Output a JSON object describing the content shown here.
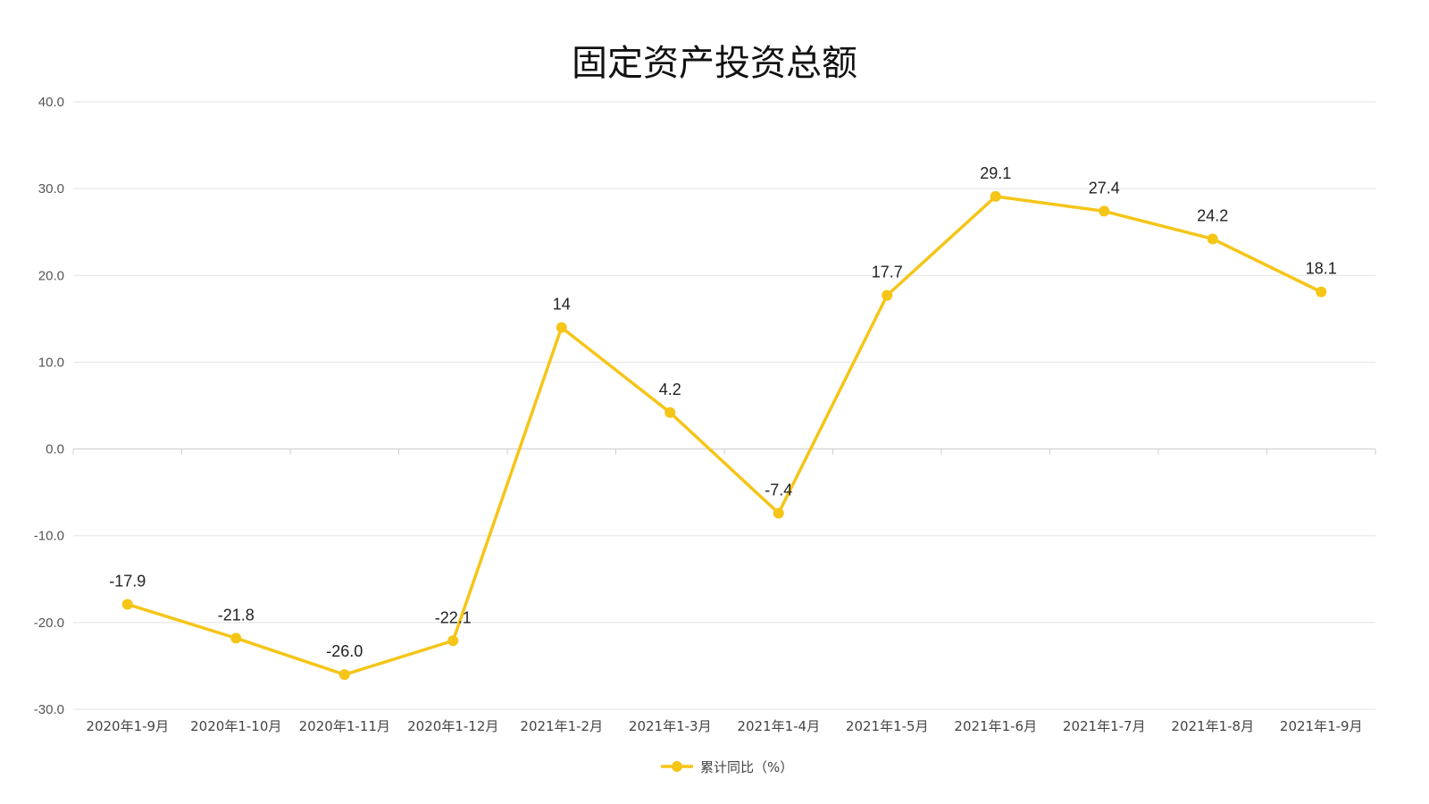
{
  "chart_data": {
    "type": "line",
    "title": "固定资产投资总额",
    "categories": [
      "2020年1-9月",
      "2020年1-10月",
      "2020年1-11月",
      "2020年1-12月",
      "2021年1-2月",
      "2021年1-3月",
      "2021年1-4月",
      "2021年1-5月",
      "2021年1-6月",
      "2021年1-7月",
      "2021年1-8月",
      "2021年1-9月"
    ],
    "series": [
      {
        "name": "累计同比（%）",
        "values": [
          -17.9,
          -21.8,
          -26.0,
          -22.1,
          14,
          4.2,
          -7.4,
          17.7,
          29.1,
          27.4,
          24.2,
          18.1
        ],
        "labels": [
          "-17.9",
          "-21.8",
          "-26.0",
          "-22.1",
          "14",
          "4.2",
          "-7.4",
          "17.7",
          "29.1",
          "27.4",
          "24.2",
          "18.1"
        ],
        "color": "#F5C518"
      }
    ],
    "ylim": [
      -30,
      40
    ],
    "yticks": [
      "40.0",
      "30.0",
      "20.0",
      "10.0",
      "0.0",
      "-10.0",
      "-20.0",
      "-30.0"
    ],
    "ytick_values": [
      40,
      30,
      20,
      10,
      0,
      -10,
      -20,
      -30
    ],
    "grid": true,
    "legend_position": "bottom",
    "xlabel": "",
    "ylabel": ""
  }
}
